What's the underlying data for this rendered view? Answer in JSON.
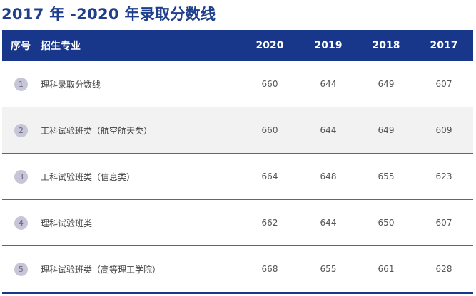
{
  "title": "2017 年 -2020 年录取分数线",
  "header": {
    "seq": "序号",
    "name": "招生专业",
    "years": [
      "2020",
      "2019",
      "2018",
      "2017"
    ]
  },
  "rows": [
    {
      "num": "1",
      "name": "理科录取分数线",
      "scores": [
        "660",
        "644",
        "649",
        "607"
      ]
    },
    {
      "num": "2",
      "name": "工科试验班类（航空航天类）",
      "scores": [
        "660",
        "644",
        "649",
        "609"
      ]
    },
    {
      "num": "3",
      "name": "工科试验班类（信息类）",
      "scores": [
        "664",
        "648",
        "655",
        "623"
      ]
    },
    {
      "num": "4",
      "name": "理科试验班类",
      "scores": [
        "662",
        "644",
        "650",
        "607"
      ]
    },
    {
      "num": "5",
      "name": "理科试验班类（高等理工学院）",
      "scores": [
        "668",
        "655",
        "661",
        "628"
      ]
    }
  ]
}
